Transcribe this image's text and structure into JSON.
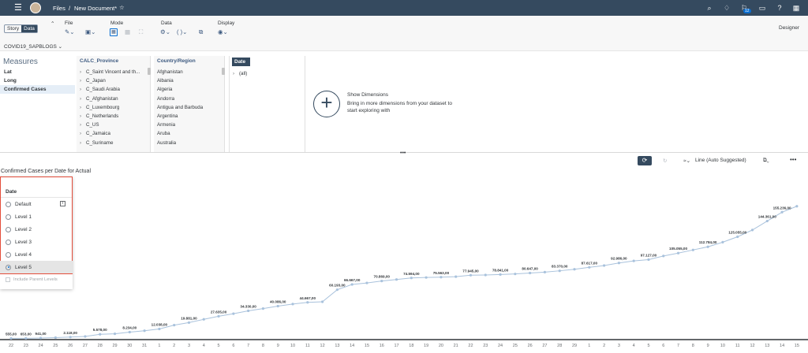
{
  "shell": {
    "breadcrumb_root": "Files",
    "separator": "/",
    "document_title": "New Document*",
    "notification_count": "12",
    "colors": {
      "shell_bg": "#354a5f",
      "accent": "#0a6ed1"
    }
  },
  "toolbar": {
    "story_label": "Story",
    "data_label": "Data",
    "file_label": "File",
    "mode_label": "Mode",
    "data_group_label": "Data",
    "display_label": "Display",
    "designer_label": "Designer",
    "model_name": "COVID19_SAPBLOGS"
  },
  "measures": {
    "header": "Measures",
    "items": [
      "Lat",
      "Long",
      "Confirmed Cases"
    ]
  },
  "calc_province": {
    "header": "CALC_Province",
    "items": [
      "C_Saint Vincent and th...",
      "C_Japan",
      "C_Saudi Arabia",
      "C_Afghanistan",
      "C_Luxembourg",
      "C_Netherlands",
      "C_US",
      "C_Jamaica",
      "C_Suriname"
    ]
  },
  "country_region": {
    "header": "Country/Region",
    "items": [
      "Afghanistan",
      "Albania",
      "Algeria",
      "Andorra",
      "Antigua and Barbuda",
      "Argentina",
      "Armenia",
      "Aruba",
      "Australia"
    ]
  },
  "date_dim": {
    "header": "Date",
    "items": [
      "(all)"
    ]
  },
  "show_dimensions": {
    "title": "Show Dimensions",
    "subtitle": "Bring in more dimensions from your dataset to start exploring with"
  },
  "chart_toolbar": {
    "chart_type_label": "Line (Auto Suggested)"
  },
  "hierarchy_popup": {
    "header": "Date",
    "options": [
      "Default",
      "Level 1",
      "Level 2",
      "Level 3",
      "Level 4",
      "Level 5"
    ],
    "selected": "Level 5",
    "include_parent_label": "Include Parent Levels"
  },
  "chart_data": {
    "type": "line",
    "title": "Confirmed Cases per Date for Actual",
    "color": "#a9c2dc",
    "x": [
      "22",
      "23",
      "24",
      "25",
      "26",
      "27",
      "28",
      "29",
      "30",
      "31",
      "1",
      "2",
      "3",
      "4",
      "5",
      "6",
      "7",
      "8",
      "9",
      "10",
      "11",
      "12",
      "13",
      "14",
      "15",
      "16",
      "17",
      "18",
      "19",
      "20",
      "21",
      "22",
      "23",
      "24",
      "25",
      "26",
      "27",
      "28",
      "29",
      "1",
      "2",
      "3",
      "4",
      "5",
      "6",
      "7",
      "8",
      "9",
      "10",
      "11",
      "12",
      "13",
      "14",
      "15"
    ],
    "values": [
      555,
      653,
      941,
      1434,
      2118,
      2927,
      5578,
      6166,
      8234,
      9927,
      12038,
      16787,
      19881,
      23892,
      27635,
      30794,
      34330,
      37102,
      40086,
      42638,
      44667,
      45400,
      60193,
      66667,
      68508,
      70869,
      72723,
      74594,
      75180,
      75563,
      76208,
      77945,
      78234,
      78841,
      79529,
      80647,
      81744,
      83370,
      85290,
      87617,
      89796,
      92986,
      95490,
      97127,
      101561,
      105055,
      108960,
      112784,
      118447,
      125055,
      133400,
      144361,
      155236,
      162500
    ],
    "labels": [
      {
        "i": 0,
        "text": "555,00"
      },
      {
        "i": 1,
        "text": "653,00"
      },
      {
        "i": 2,
        "text": "941,00"
      },
      {
        "i": 4,
        "text": "2.118,00"
      },
      {
        "i": 6,
        "text": "5.578,00"
      },
      {
        "i": 8,
        "text": "8.234,00"
      },
      {
        "i": 10,
        "text": "12.038,00"
      },
      {
        "i": 12,
        "text": "19.881,00"
      },
      {
        "i": 14,
        "text": "27.635,00"
      },
      {
        "i": 16,
        "text": "34.330,00"
      },
      {
        "i": 18,
        "text": "40.086,00"
      },
      {
        "i": 20,
        "text": "44.667,00"
      },
      {
        "i": 22,
        "text": "60.193,00"
      },
      {
        "i": 23,
        "text": "66.667,00"
      },
      {
        "i": 25,
        "text": "70.869,00"
      },
      {
        "i": 27,
        "text": "74.594,00"
      },
      {
        "i": 29,
        "text": "75.563,00"
      },
      {
        "i": 31,
        "text": "77.945,00"
      },
      {
        "i": 33,
        "text": "78.841,00"
      },
      {
        "i": 35,
        "text": "80.647,00"
      },
      {
        "i": 37,
        "text": "83.370,00"
      },
      {
        "i": 39,
        "text": "87.617,00"
      },
      {
        "i": 41,
        "text": "92.986,00"
      },
      {
        "i": 43,
        "text": "97.127,00"
      },
      {
        "i": 45,
        "text": "105.055,00"
      },
      {
        "i": 47,
        "text": "112.784,00"
      },
      {
        "i": 49,
        "text": "125.055,00"
      },
      {
        "i": 51,
        "text": "144.361,00"
      },
      {
        "i": 52,
        "text": "155.236,00"
      }
    ],
    "ylim": [
      0,
      170000
    ],
    "grid": false,
    "legend": "none"
  }
}
